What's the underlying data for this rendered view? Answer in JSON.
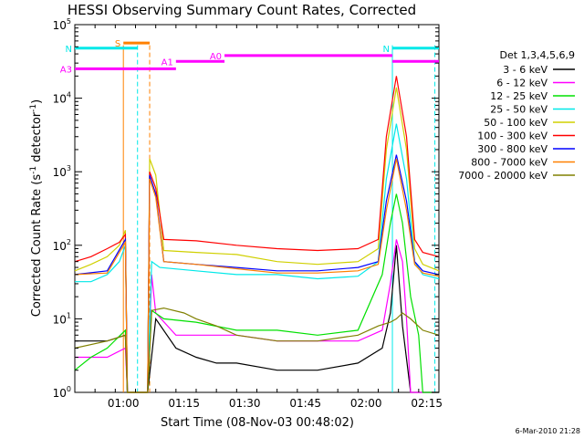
{
  "chart_data": {
    "type": "line",
    "title": "HESSI Observing Summary Count Rates, Corrected",
    "xlabel": "Start Time (08-Nov-03 00:48:02)",
    "ylabel_main": "Corrected Count Rate (s",
    "ylabel_sup1": "-1",
    "ylabel_mid": " detector",
    "ylabel_sup2": "-1",
    "ylabel_end": ")",
    "x_range_min": [
      0,
      90
    ],
    "y_log_range": [
      0,
      5
    ],
    "y_scale": "log",
    "x_ticks": [
      {
        "label": "01:00",
        "min": 12
      },
      {
        "label": "01:15",
        "min": 27
      },
      {
        "label": "01:30",
        "min": 42
      },
      {
        "label": "01:45",
        "min": 57
      },
      {
        "label": "02:00",
        "min": 72
      },
      {
        "label": "02:15",
        "min": 87
      }
    ],
    "y_ticks": [
      {
        "base": "10",
        "exp": "0",
        "value": 1
      },
      {
        "base": "10",
        "exp": "1",
        "value": 10
      },
      {
        "base": "10",
        "exp": "2",
        "value": 100
      },
      {
        "base": "10",
        "exp": "3",
        "value": 1000
      },
      {
        "base": "10",
        "exp": "4",
        "value": 10000
      },
      {
        "base": "10",
        "exp": "5",
        "value": 100000
      }
    ],
    "legend_placement": "right",
    "legend_title": "Det 1,3,4,5,6,9",
    "series": [
      {
        "name": "3 - 6 keV",
        "color": "#000000",
        "x": [
          0,
          8,
          12.5,
          13,
          18,
          20,
          25,
          30,
          35,
          40,
          50,
          60,
          70,
          76,
          78,
          79.5,
          81,
          83,
          85,
          90
        ],
        "y": [
          5,
          5,
          6,
          1,
          1,
          10,
          4,
          3,
          2.5,
          2.5,
          2,
          2,
          2.5,
          4,
          12,
          100,
          8,
          1,
          1,
          1
        ]
      },
      {
        "name": "6 - 12 keV",
        "color": "#ff00ff",
        "x": [
          0,
          8,
          12.5,
          13,
          18,
          19,
          20,
          25,
          30,
          40,
          50,
          60,
          70,
          76,
          78,
          79.5,
          81,
          82,
          83,
          90
        ],
        "y": [
          3,
          3,
          4,
          1,
          1,
          40,
          12,
          6,
          6,
          6,
          5,
          5,
          5,
          7,
          30,
          120,
          60,
          10,
          1,
          1
        ]
      },
      {
        "name": "12 - 25 keV",
        "color": "#00e000",
        "x": [
          0,
          4,
          8,
          12.5,
          13,
          18,
          19,
          22,
          30,
          40,
          50,
          60,
          70,
          76,
          78,
          79.5,
          81,
          83,
          85,
          86,
          90
        ],
        "y": [
          2,
          3,
          4,
          7,
          1,
          1,
          13,
          10,
          9,
          7,
          7,
          6,
          7,
          40,
          200,
          500,
          200,
          20,
          6,
          1,
          1
        ]
      },
      {
        "name": "25 - 50 keV",
        "color": "#00e8e8",
        "x": [
          0,
          4,
          8,
          11,
          12.5,
          13,
          18,
          19,
          21,
          30,
          40,
          50,
          60,
          70,
          75,
          77,
          79.5,
          82,
          84,
          86,
          90
        ],
        "y": [
          32,
          32,
          40,
          60,
          100,
          1,
          1,
          60,
          50,
          45,
          40,
          40,
          35,
          38,
          60,
          800,
          4500,
          800,
          60,
          40,
          35
        ]
      },
      {
        "name": "50 - 100 keV",
        "color": "#d0d000",
        "x": [
          0,
          4,
          8,
          11,
          12.5,
          13,
          18,
          18.5,
          20,
          22,
          30,
          40,
          50,
          60,
          70,
          75,
          77,
          79.5,
          82,
          84,
          86,
          90
        ],
        "y": [
          45,
          55,
          70,
          100,
          160,
          1,
          1,
          1500,
          900,
          85,
          80,
          75,
          60,
          55,
          60,
          90,
          2000,
          14000,
          2000,
          90,
          55,
          45
        ]
      },
      {
        "name": "100 - 300 keV",
        "color": "#ff0000",
        "x": [
          0,
          4,
          8,
          11,
          12.5,
          13,
          18,
          18.5,
          20,
          22,
          30,
          40,
          50,
          60,
          70,
          75,
          77,
          79.5,
          82,
          84,
          86,
          90
        ],
        "y": [
          60,
          70,
          90,
          110,
          140,
          1,
          1,
          1000,
          600,
          120,
          115,
          100,
          90,
          85,
          90,
          120,
          3000,
          20000,
          3000,
          120,
          80,
          70
        ]
      },
      {
        "name": "300 - 800 keV",
        "color": "#0000ff",
        "x": [
          0,
          8,
          12.5,
          13,
          18,
          18.5,
          20,
          22,
          30,
          40,
          50,
          60,
          70,
          75,
          77,
          79.5,
          82,
          84,
          86,
          90
        ],
        "y": [
          40,
          45,
          120,
          1,
          1,
          900,
          500,
          60,
          55,
          50,
          45,
          45,
          50,
          60,
          400,
          1700,
          400,
          60,
          45,
          40
        ]
      },
      {
        "name": "800 - 7000 keV",
        "color": "#ff8000",
        "x": [
          0,
          8,
          12.5,
          13,
          18,
          18.5,
          20,
          22,
          30,
          40,
          50,
          60,
          70,
          75,
          77,
          79.5,
          82,
          84,
          86,
          90
        ],
        "y": [
          40,
          42,
          110,
          1,
          1,
          800,
          450,
          60,
          55,
          48,
          42,
          42,
          45,
          55,
          300,
          1500,
          300,
          55,
          42,
          38
        ]
      },
      {
        "name": "7000 - 20000 keV",
        "color": "#808000",
        "x": [
          0,
          8,
          12.5,
          13,
          18,
          19,
          22,
          27,
          30,
          35,
          40,
          50,
          60,
          70,
          75,
          78,
          79.5,
          81,
          83,
          86,
          90
        ],
        "y": [
          4,
          5,
          6,
          1,
          1,
          13,
          14,
          12,
          10,
          8,
          6,
          5,
          5,
          6,
          8,
          9,
          10,
          12,
          10,
          7,
          6
        ]
      }
    ],
    "attenuator_bars": [
      {
        "label": "S",
        "color": "#ff8000",
        "x1": 12,
        "x2": 18.5,
        "log_y": 4.75
      },
      {
        "label": "N",
        "color": "#00e8e8",
        "x1": 0,
        "x2": 15.5,
        "log_y": 4.68
      },
      {
        "label": "N",
        "color": "#00e8e8",
        "x1": 78.5,
        "x2": 90,
        "log_y": 4.68
      },
      {
        "label": "A0",
        "color": "#ff00ff",
        "x1": 37,
        "x2": 78.5,
        "log_y": 4.58
      },
      {
        "label": "A1",
        "color": "#ff00ff",
        "x1": 25,
        "x2": 37,
        "log_y": 4.5
      },
      {
        "label": "A3",
        "color": "#ff00ff",
        "x1": 0,
        "x2": 25,
        "log_y": 4.4
      },
      {
        "label": "",
        "color": "#ff00ff",
        "x1": 78.5,
        "x2": 90,
        "log_y": 4.5
      }
    ],
    "vertical_markers": [
      {
        "min": 12.0,
        "color": "#ff8000",
        "style": "solid"
      },
      {
        "min": 15.5,
        "color": "#00e8e8",
        "style": "dashed"
      },
      {
        "min": 18.5,
        "color": "#ff8000",
        "style": "dashed"
      },
      {
        "min": 78.5,
        "color": "#00e8e8",
        "style": "solid"
      },
      {
        "min": 89.0,
        "color": "#00e8e8",
        "style": "dashed"
      }
    ],
    "footer_date": "6-Mar-2010 21:28"
  }
}
